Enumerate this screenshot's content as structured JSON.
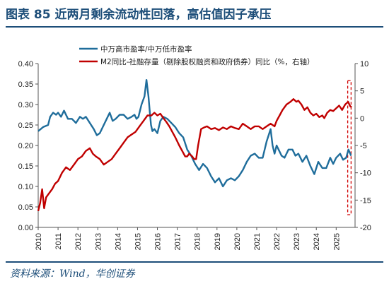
{
  "header": {
    "title": "图表 85 近两月剩余流动性回落，高估值因子承压"
  },
  "footer": {
    "source": "资料来源：Wind，华创证券"
  },
  "chart_data": {
    "type": "line",
    "title": "",
    "xlabel": "",
    "ylabel": "",
    "x_ticks": [
      "2010",
      "2011",
      "2012",
      "2013",
      "2014",
      "2015",
      "2016",
      "2017",
      "2018",
      "2019",
      "2020",
      "2021",
      "2022",
      "2023",
      "2024",
      "2025"
    ],
    "left_axis": {
      "ylim": [
        0,
        0.4
      ],
      "ticks": [
        "0.00",
        "0.05",
        "0.10",
        "0.15",
        "0.20",
        "0.25",
        "0.30",
        "0.35",
        "0.40"
      ]
    },
    "right_axis": {
      "ylim": [
        -20,
        10
      ],
      "ticks": [
        "-20",
        "-15",
        "-10",
        "-5",
        "0",
        "5",
        "10"
      ]
    },
    "legend": {
      "placement": "top"
    },
    "highlight_box": {
      "style": "red dashed",
      "x_range": [
        2025.58,
        2025.75
      ]
    },
    "series": [
      {
        "name": "中万高市盈率/中万低市盈率",
        "axis": "left",
        "color": "#1f6d9b",
        "points": [
          [
            2010.0,
            0.235
          ],
          [
            2010.25,
            0.245
          ],
          [
            2010.5,
            0.25
          ],
          [
            2010.6,
            0.27
          ],
          [
            2010.75,
            0.28
          ],
          [
            2010.9,
            0.275
          ],
          [
            2011.0,
            0.28
          ],
          [
            2011.15,
            0.27
          ],
          [
            2011.3,
            0.285
          ],
          [
            2011.5,
            0.265
          ],
          [
            2011.7,
            0.265
          ],
          [
            2011.9,
            0.255
          ],
          [
            2012.1,
            0.27
          ],
          [
            2012.25,
            0.265
          ],
          [
            2012.4,
            0.27
          ],
          [
            2012.6,
            0.255
          ],
          [
            2012.8,
            0.24
          ],
          [
            2012.95,
            0.225
          ],
          [
            2013.1,
            0.23
          ],
          [
            2013.3,
            0.25
          ],
          [
            2013.45,
            0.265
          ],
          [
            2013.6,
            0.28
          ],
          [
            2013.75,
            0.26
          ],
          [
            2013.9,
            0.265
          ],
          [
            2014.1,
            0.275
          ],
          [
            2014.3,
            0.275
          ],
          [
            2014.5,
            0.265
          ],
          [
            2014.7,
            0.27
          ],
          [
            2014.85,
            0.275
          ],
          [
            2014.95,
            0.265
          ],
          [
            2015.05,
            0.27
          ],
          [
            2015.2,
            0.3
          ],
          [
            2015.35,
            0.32
          ],
          [
            2015.45,
            0.36
          ],
          [
            2015.55,
            0.32
          ],
          [
            2015.62,
            0.28
          ],
          [
            2015.68,
            0.25
          ],
          [
            2015.75,
            0.235
          ],
          [
            2015.85,
            0.24
          ],
          [
            2016.0,
            0.23
          ],
          [
            2016.15,
            0.26
          ],
          [
            2016.3,
            0.27
          ],
          [
            2016.5,
            0.265
          ],
          [
            2016.7,
            0.255
          ],
          [
            2016.9,
            0.245
          ],
          [
            2017.1,
            0.23
          ],
          [
            2017.3,
            0.22
          ],
          [
            2017.5,
            0.19
          ],
          [
            2017.7,
            0.175
          ],
          [
            2017.9,
            0.155
          ],
          [
            2018.1,
            0.14
          ],
          [
            2018.3,
            0.155
          ],
          [
            2018.5,
            0.145
          ],
          [
            2018.7,
            0.125
          ],
          [
            2018.9,
            0.11
          ],
          [
            2019.1,
            0.12
          ],
          [
            2019.3,
            0.1
          ],
          [
            2019.5,
            0.115
          ],
          [
            2019.7,
            0.12
          ],
          [
            2019.9,
            0.115
          ],
          [
            2020.1,
            0.125
          ],
          [
            2020.3,
            0.14
          ],
          [
            2020.5,
            0.16
          ],
          [
            2020.7,
            0.175
          ],
          [
            2020.9,
            0.18
          ],
          [
            2021.1,
            0.17
          ],
          [
            2021.3,
            0.17
          ],
          [
            2021.5,
            0.21
          ],
          [
            2021.7,
            0.24
          ],
          [
            2021.8,
            0.2
          ],
          [
            2021.9,
            0.18
          ],
          [
            2022.0,
            0.2
          ],
          [
            2022.1,
            0.19
          ],
          [
            2022.25,
            0.175
          ],
          [
            2022.4,
            0.17
          ],
          [
            2022.6,
            0.19
          ],
          [
            2022.8,
            0.19
          ],
          [
            2022.95,
            0.175
          ],
          [
            2023.1,
            0.18
          ],
          [
            2023.3,
            0.16
          ],
          [
            2023.5,
            0.175
          ],
          [
            2023.7,
            0.15
          ],
          [
            2023.9,
            0.13
          ],
          [
            2024.1,
            0.16
          ],
          [
            2024.3,
            0.145
          ],
          [
            2024.5,
            0.145
          ],
          [
            2024.7,
            0.17
          ],
          [
            2024.85,
            0.155
          ],
          [
            2025.0,
            0.17
          ],
          [
            2025.2,
            0.18
          ],
          [
            2025.35,
            0.165
          ],
          [
            2025.5,
            0.17
          ],
          [
            2025.62,
            0.19
          ],
          [
            2025.75,
            0.175
          ]
        ]
      },
      {
        "name": "M2同比-社融存量（剔除股权融资和政府债券）同比（%，右轴）",
        "axis": "right",
        "color": "#c00000",
        "points": [
          [
            2010.0,
            -17.0
          ],
          [
            2010.1,
            -15.5
          ],
          [
            2010.2,
            -13.0
          ],
          [
            2010.3,
            -16.5
          ],
          [
            2010.4,
            -14.5
          ],
          [
            2010.5,
            -14.0
          ],
          [
            2010.7,
            -13.0
          ],
          [
            2010.85,
            -12.0
          ],
          [
            2011.0,
            -11.5
          ],
          [
            2011.2,
            -10.0
          ],
          [
            2011.4,
            -9.0
          ],
          [
            2011.6,
            -9.5
          ],
          [
            2011.8,
            -8.5
          ],
          [
            2012.0,
            -7.5
          ],
          [
            2012.2,
            -7.0
          ],
          [
            2012.4,
            -6.0
          ],
          [
            2012.6,
            -5.5
          ],
          [
            2012.75,
            -6.5
          ],
          [
            2012.9,
            -7.0
          ],
          [
            2013.1,
            -7.5
          ],
          [
            2013.3,
            -8.5
          ],
          [
            2013.5,
            -8.0
          ],
          [
            2013.7,
            -7.5
          ],
          [
            2013.9,
            -6.5
          ],
          [
            2014.1,
            -5.5
          ],
          [
            2014.3,
            -4.5
          ],
          [
            2014.5,
            -3.5
          ],
          [
            2014.7,
            -3.0
          ],
          [
            2014.9,
            -2.5
          ],
          [
            2015.1,
            -1.5
          ],
          [
            2015.3,
            -0.5
          ],
          [
            2015.5,
            0.5
          ],
          [
            2015.7,
            0.5
          ],
          [
            2015.85,
            1.0
          ],
          [
            2016.0,
            0.5
          ],
          [
            2016.15,
            0.8
          ],
          [
            2016.3,
            0.0
          ],
          [
            2016.45,
            -0.7
          ],
          [
            2016.6,
            -1.5
          ],
          [
            2016.75,
            -2.5
          ],
          [
            2016.9,
            -3.5
          ],
          [
            2017.1,
            -5.0
          ],
          [
            2017.25,
            -6.0
          ],
          [
            2017.4,
            -7.0
          ],
          [
            2017.5,
            -7.0
          ],
          [
            2017.6,
            -6.5
          ],
          [
            2017.75,
            -7.0
          ],
          [
            2017.85,
            -7.5
          ],
          [
            2017.95,
            -7.5
          ],
          [
            2018.05,
            -5.0
          ],
          [
            2018.2,
            -2.0
          ],
          [
            2018.35,
            -1.7
          ],
          [
            2018.5,
            -1.5
          ],
          [
            2018.7,
            -2.0
          ],
          [
            2018.9,
            -1.8
          ],
          [
            2019.1,
            -2.2
          ],
          [
            2019.3,
            -1.7
          ],
          [
            2019.5,
            -2.0
          ],
          [
            2019.7,
            -1.5
          ],
          [
            2019.9,
            -1.8
          ],
          [
            2020.1,
            -2.0
          ],
          [
            2020.3,
            -1.0
          ],
          [
            2020.5,
            -1.5
          ],
          [
            2020.7,
            -2.0
          ],
          [
            2020.9,
            -1.5
          ],
          [
            2021.1,
            -1.5
          ],
          [
            2021.3,
            -2.0
          ],
          [
            2021.5,
            -1.5
          ],
          [
            2021.7,
            -1.0
          ],
          [
            2021.9,
            -1.5
          ],
          [
            2022.0,
            -0.5
          ],
          [
            2022.15,
            0.5
          ],
          [
            2022.3,
            1.5
          ],
          [
            2022.5,
            2.5
          ],
          [
            2022.7,
            3.0
          ],
          [
            2022.85,
            3.5
          ],
          [
            2023.0,
            3.0
          ],
          [
            2023.1,
            3.2
          ],
          [
            2023.25,
            2.5
          ],
          [
            2023.4,
            1.5
          ],
          [
            2023.55,
            2.0
          ],
          [
            2023.7,
            1.0
          ],
          [
            2023.85,
            0.5
          ],
          [
            2024.0,
            0.8
          ],
          [
            2024.15,
            0.2
          ],
          [
            2024.3,
            0.5
          ],
          [
            2024.4,
            0.0
          ],
          [
            2024.55,
            1.0
          ],
          [
            2024.7,
            1.5
          ],
          [
            2024.85,
            1.3
          ],
          [
            2025.0,
            1.8
          ],
          [
            2025.15,
            2.3
          ],
          [
            2025.3,
            1.5
          ],
          [
            2025.45,
            2.5
          ],
          [
            2025.6,
            3.0
          ],
          [
            2025.7,
            2.2
          ],
          [
            2025.78,
            2.0
          ]
        ]
      }
    ]
  }
}
